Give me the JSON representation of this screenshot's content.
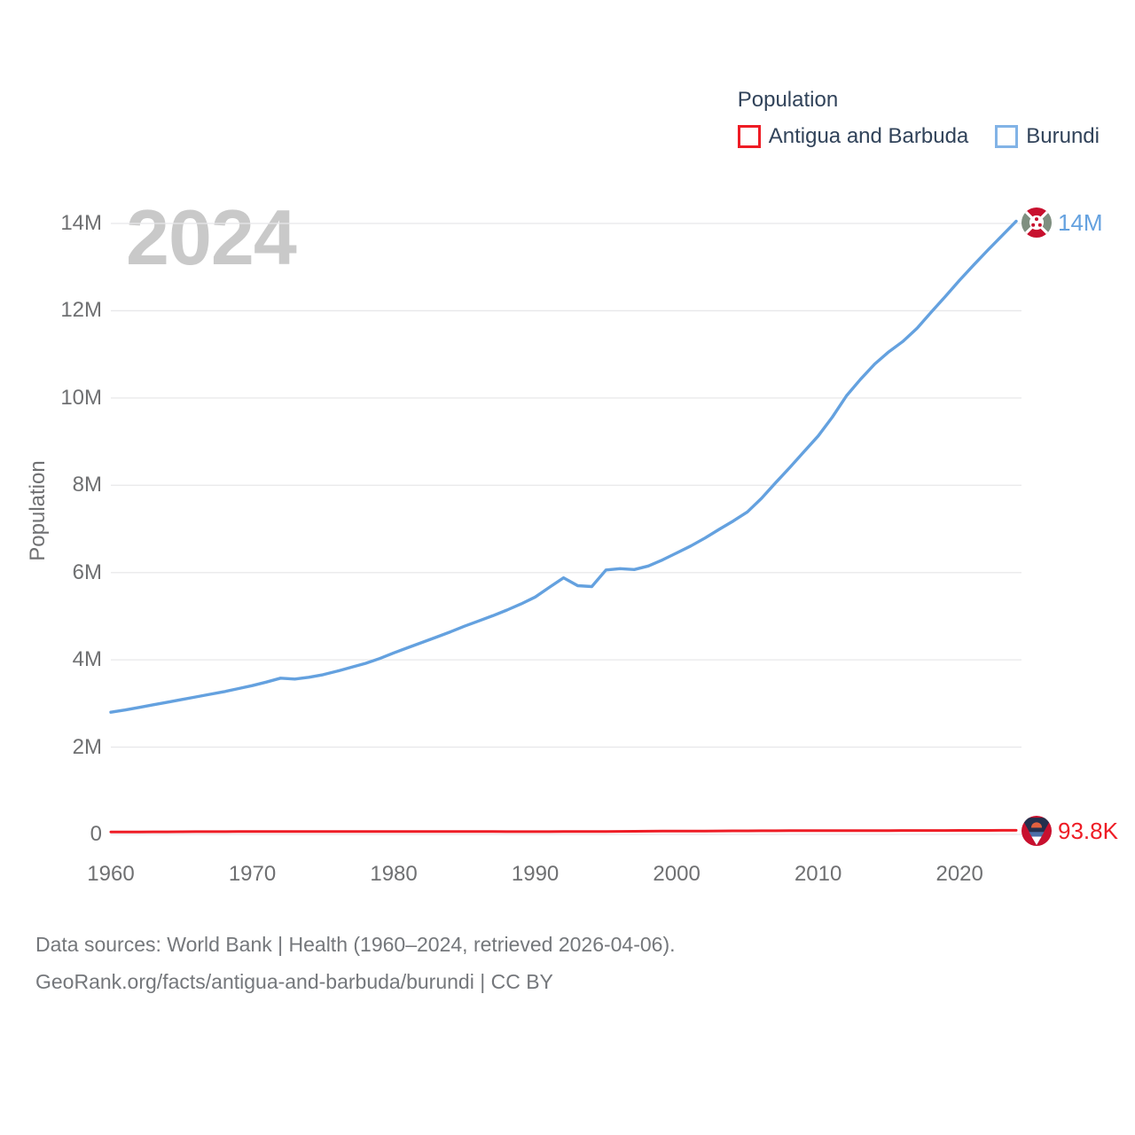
{
  "legend": {
    "title": "Population",
    "items": [
      {
        "label": "Antigua and Barbuda",
        "color": "#ee1c25"
      },
      {
        "label": "Burundi",
        "color": "#82b3e6"
      }
    ]
  },
  "watermark": "2024",
  "axis": {
    "y_title": "Population"
  },
  "footer": {
    "line1": "Data sources: World Bank | Health (1960–2024, retrieved 2026-04-06).",
    "line2": "GeoRank.org/facts/antigua-and-barbuda/burundi | CC BY"
  },
  "chart_data": {
    "type": "line",
    "title": "Population",
    "ylabel": "Population",
    "xlabel": "",
    "grid": "horizontal",
    "legend_position": "top-right",
    "x_start_year": 1960,
    "x_end_year": 2024,
    "x_ticks": [
      1960,
      1970,
      1980,
      1990,
      2000,
      2010,
      2020
    ],
    "y_ticks": [
      {
        "label": "0",
        "value": 0
      },
      {
        "label": "2M",
        "value": 2
      },
      {
        "label": "4M",
        "value": 4
      },
      {
        "label": "6M",
        "value": 6
      },
      {
        "label": "8M",
        "value": 8
      },
      {
        "label": "10M",
        "value": 10
      },
      {
        "label": "12M",
        "value": 12
      },
      {
        "label": "14M",
        "value": 14
      }
    ],
    "ylim_millions": [
      0,
      14.3
    ],
    "xlim": [
      1960,
      2024
    ],
    "gridline_color": "#e8e8ea",
    "series": [
      {
        "name": "Antigua and Barbuda",
        "color": "#ee1c25",
        "end_label": "93.8K",
        "end_value_millions": 0.0938,
        "values_millions": [
          0.0553,
          0.0563,
          0.0575,
          0.0587,
          0.0599,
          0.061,
          0.062,
          0.0629,
          0.0636,
          0.0642,
          0.0645,
          0.0647,
          0.0649,
          0.0652,
          0.0655,
          0.0659,
          0.0663,
          0.0666,
          0.0668,
          0.0669,
          0.0668,
          0.0666,
          0.0663,
          0.0659,
          0.0655,
          0.0651,
          0.0647,
          0.0643,
          0.064,
          0.0637,
          0.0635,
          0.0636,
          0.0642,
          0.0652,
          0.0665,
          0.068,
          0.0696,
          0.0712,
          0.0728,
          0.0742,
          0.0756,
          0.0769,
          0.0781,
          0.0793,
          0.0805,
          0.0817,
          0.0829,
          0.084,
          0.085,
          0.0856,
          0.086,
          0.0863,
          0.0867,
          0.0872,
          0.0877,
          0.0882,
          0.0887,
          0.0892,
          0.0897,
          0.0902,
          0.0907,
          0.0912,
          0.092,
          0.0929,
          0.0938
        ]
      },
      {
        "name": "Burundi",
        "color": "#64a1df",
        "end_label": "14M",
        "end_value_millions": 14.05,
        "values_millions": [
          2.8,
          2.85,
          2.91,
          2.97,
          3.03,
          3.09,
          3.15,
          3.21,
          3.27,
          3.34,
          3.41,
          3.49,
          3.58,
          3.56,
          3.6,
          3.66,
          3.74,
          3.83,
          3.92,
          4.03,
          4.16,
          4.28,
          4.4,
          4.52,
          4.64,
          4.77,
          4.89,
          5.01,
          5.14,
          5.28,
          5.44,
          5.66,
          5.88,
          5.7,
          5.68,
          6.06,
          6.09,
          6.07,
          6.15,
          6.29,
          6.45,
          6.61,
          6.79,
          6.99,
          7.18,
          7.39,
          7.7,
          8.06,
          8.41,
          8.77,
          9.13,
          9.56,
          10.05,
          10.43,
          10.78,
          11.06,
          11.3,
          11.6,
          11.97,
          12.33,
          12.7,
          13.05,
          13.39,
          13.72,
          14.05
        ]
      }
    ]
  }
}
